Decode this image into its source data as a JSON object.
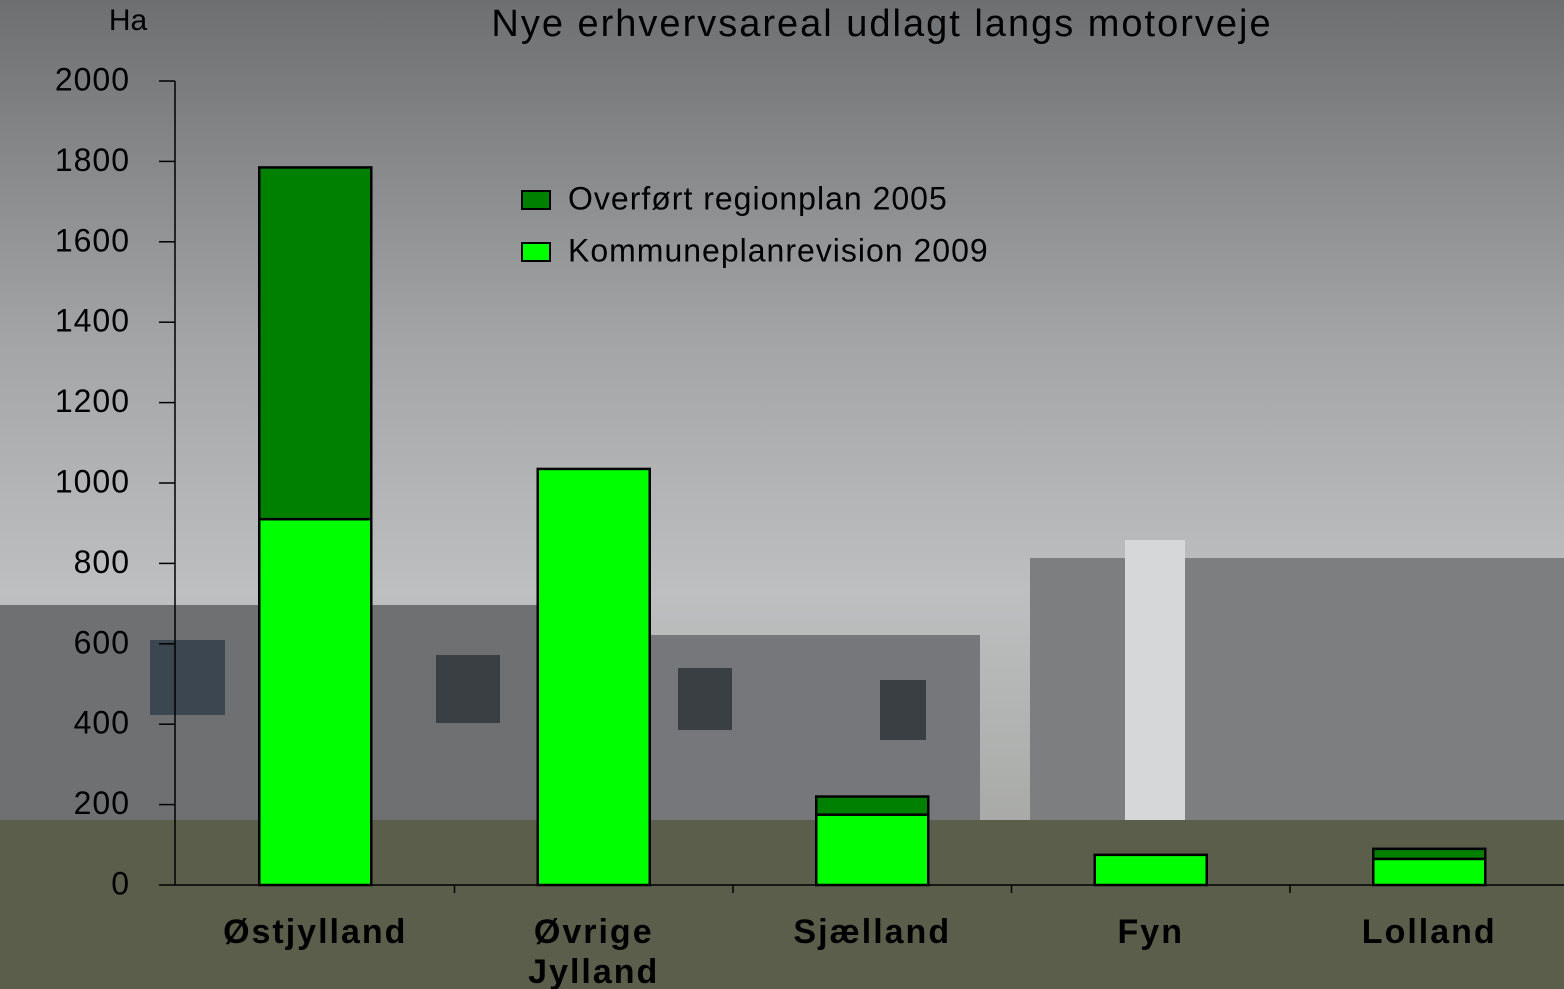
{
  "chart_data": {
    "type": "stacked_bar",
    "title": "Nye erhvervsareal udlagt langs motorveje",
    "y_label": "Ha",
    "categories": [
      "Østjylland",
      "Øvrige Jylland",
      "Sjælland",
      "Fyn",
      "Lolland"
    ],
    "series": [
      {
        "name": "Kommuneplanrevision 2009",
        "color": "#00ff00",
        "values": [
          910,
          1035,
          175,
          75,
          65
        ]
      },
      {
        "name": "Overført regionplan 2005",
        "color": "#008000",
        "values": [
          875,
          0,
          45,
          0,
          25
        ]
      }
    ],
    "ylim": [
      0,
      2000
    ],
    "yticks": [
      0,
      200,
      400,
      600,
      800,
      1000,
      1200,
      1400,
      1600,
      1800,
      2000
    ]
  }
}
